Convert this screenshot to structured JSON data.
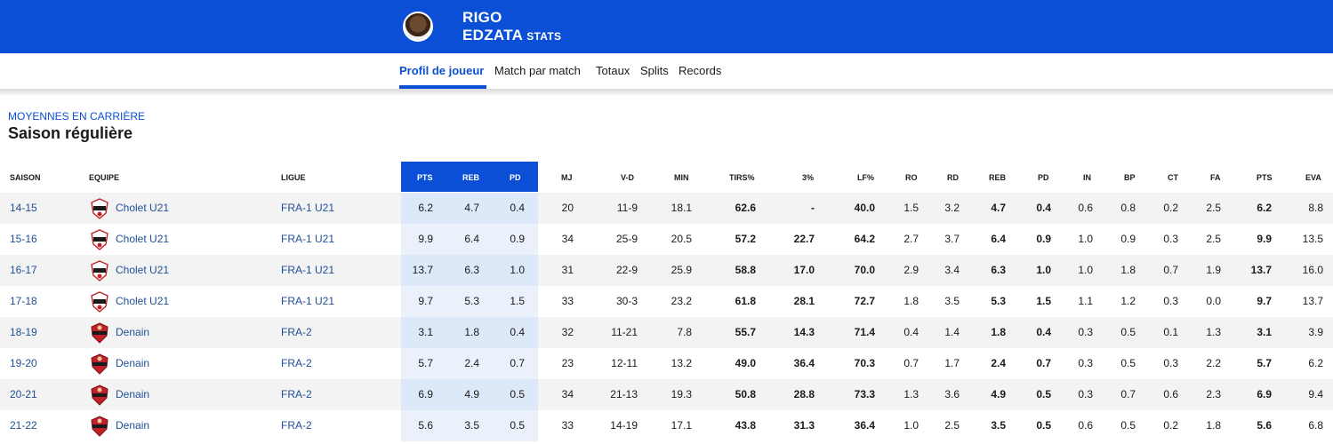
{
  "player": {
    "first_name": "RIGO",
    "last_name": "EDZATA",
    "suffix": "STATS"
  },
  "tabs": [
    {
      "label": "Profil de joueur",
      "active": true
    },
    {
      "label": "Match par match",
      "active": false
    },
    {
      "label": "Totaux",
      "active": false
    },
    {
      "label": "Splits",
      "active": false
    },
    {
      "label": "Records",
      "active": false
    }
  ],
  "section": {
    "kicker": "MOYENNES EN CARRIÈRE",
    "title": "Saison régulière"
  },
  "colors": {
    "brand": "#0a4fd6",
    "link": "#1f4f96",
    "highlight_odd": "#dde8f8",
    "highlight_even": "#eaf1fb"
  },
  "headers": [
    "SAISON",
    "EQUIPE",
    "LIGUE",
    "PTS",
    "REB",
    "PD",
    "MJ",
    "V-D",
    "MIN",
    "TIRS%",
    "3%",
    "LF%",
    "RO",
    "RD",
    "REB",
    "PD",
    "IN",
    "BP",
    "CT",
    "FA",
    "PTS",
    "EVA"
  ],
  "rows": [
    {
      "saison": "14-15",
      "team": "Cholet U21",
      "team_logo": "cholet-logo",
      "league": "FRA-1 U21",
      "pts_hl": "6.2",
      "reb_hl": "4.7",
      "pd_hl": "0.4",
      "mj": "20",
      "vd": "11-9",
      "min": "18.1",
      "tirs": "62.6",
      "p3": "-",
      "lf": "40.0",
      "ro": "1.5",
      "rd": "3.2",
      "reb": "4.7",
      "pd": "0.4",
      "in": "0.6",
      "bp": "0.8",
      "ct": "0.2",
      "fa": "2.5",
      "pts": "6.2",
      "eva": "8.8"
    },
    {
      "saison": "15-16",
      "team": "Cholet U21",
      "team_logo": "cholet-logo",
      "league": "FRA-1 U21",
      "pts_hl": "9.9",
      "reb_hl": "6.4",
      "pd_hl": "0.9",
      "mj": "34",
      "vd": "25-9",
      "min": "20.5",
      "tirs": "57.2",
      "p3": "22.7",
      "lf": "64.2",
      "ro": "2.7",
      "rd": "3.7",
      "reb": "6.4",
      "pd": "0.9",
      "in": "1.0",
      "bp": "0.9",
      "ct": "0.3",
      "fa": "2.5",
      "pts": "9.9",
      "eva": "13.5"
    },
    {
      "saison": "16-17",
      "team": "Cholet U21",
      "team_logo": "cholet-logo",
      "league": "FRA-1 U21",
      "pts_hl": "13.7",
      "reb_hl": "6.3",
      "pd_hl": "1.0",
      "mj": "31",
      "vd": "22-9",
      "min": "25.9",
      "tirs": "58.8",
      "p3": "17.0",
      "lf": "70.0",
      "ro": "2.9",
      "rd": "3.4",
      "reb": "6.3",
      "pd": "1.0",
      "in": "1.0",
      "bp": "1.8",
      "ct": "0.7",
      "fa": "1.9",
      "pts": "13.7",
      "eva": "16.0"
    },
    {
      "saison": "17-18",
      "team": "Cholet U21",
      "team_logo": "cholet-logo",
      "league": "FRA-1 U21",
      "pts_hl": "9.7",
      "reb_hl": "5.3",
      "pd_hl": "1.5",
      "mj": "33",
      "vd": "30-3",
      "min": "23.2",
      "tirs": "61.8",
      "p3": "28.1",
      "lf": "72.7",
      "ro": "1.8",
      "rd": "3.5",
      "reb": "5.3",
      "pd": "1.5",
      "in": "1.1",
      "bp": "1.2",
      "ct": "0.3",
      "fa": "0.0",
      "pts": "9.7",
      "eva": "13.7"
    },
    {
      "saison": "18-19",
      "team": "Denain",
      "team_logo": "denain-logo",
      "league": "FRA-2",
      "pts_hl": "3.1",
      "reb_hl": "1.8",
      "pd_hl": "0.4",
      "mj": "32",
      "vd": "11-21",
      "min": "7.8",
      "tirs": "55.7",
      "p3": "14.3",
      "lf": "71.4",
      "ro": "0.4",
      "rd": "1.4",
      "reb": "1.8",
      "pd": "0.4",
      "in": "0.3",
      "bp": "0.5",
      "ct": "0.1",
      "fa": "1.3",
      "pts": "3.1",
      "eva": "3.9"
    },
    {
      "saison": "19-20",
      "team": "Denain",
      "team_logo": "denain-logo",
      "league": "FRA-2",
      "pts_hl": "5.7",
      "reb_hl": "2.4",
      "pd_hl": "0.7",
      "mj": "23",
      "vd": "12-11",
      "min": "13.2",
      "tirs": "49.0",
      "p3": "36.4",
      "lf": "70.3",
      "ro": "0.7",
      "rd": "1.7",
      "reb": "2.4",
      "pd": "0.7",
      "in": "0.3",
      "bp": "0.5",
      "ct": "0.3",
      "fa": "2.2",
      "pts": "5.7",
      "eva": "6.2"
    },
    {
      "saison": "20-21",
      "team": "Denain",
      "team_logo": "denain-logo",
      "league": "FRA-2",
      "pts_hl": "6.9",
      "reb_hl": "4.9",
      "pd_hl": "0.5",
      "mj": "34",
      "vd": "21-13",
      "min": "19.3",
      "tirs": "50.8",
      "p3": "28.8",
      "lf": "73.3",
      "ro": "1.3",
      "rd": "3.6",
      "reb": "4.9",
      "pd": "0.5",
      "in": "0.3",
      "bp": "0.7",
      "ct": "0.6",
      "fa": "2.3",
      "pts": "6.9",
      "eva": "9.4"
    },
    {
      "saison": "21-22",
      "team": "Denain",
      "team_logo": "denain-logo",
      "league": "FRA-2",
      "pts_hl": "5.6",
      "reb_hl": "3.5",
      "pd_hl": "0.5",
      "mj": "33",
      "vd": "14-19",
      "min": "17.1",
      "tirs": "43.8",
      "p3": "31.3",
      "lf": "36.4",
      "ro": "1.0",
      "rd": "2.5",
      "reb": "3.5",
      "pd": "0.5",
      "in": "0.6",
      "bp": "0.5",
      "ct": "0.2",
      "fa": "1.8",
      "pts": "5.6",
      "eva": "6.8"
    }
  ]
}
